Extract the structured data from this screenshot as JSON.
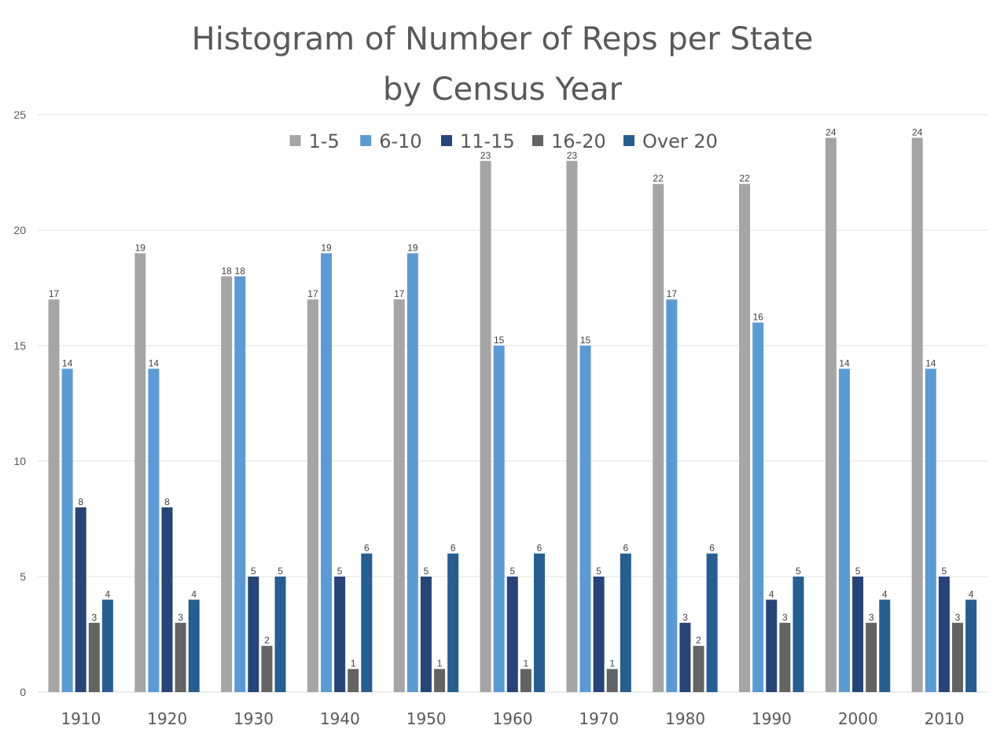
{
  "chart_data": {
    "type": "bar",
    "title": [
      "Histogram of Number of Reps per State",
      "by Census Year"
    ],
    "categories": [
      "1910",
      "1920",
      "1930",
      "1940",
      "1950",
      "1960",
      "1970",
      "1980",
      "1990",
      "2000",
      "2010"
    ],
    "series": [
      {
        "name": "1-5",
        "color": "#a5a5a5",
        "values": [
          17,
          19,
          18,
          17,
          17,
          23,
          23,
          22,
          22,
          24,
          24
        ]
      },
      {
        "name": "6-10",
        "color": "#5b9bd5",
        "values": [
          14,
          14,
          18,
          19,
          19,
          15,
          15,
          17,
          16,
          14,
          14
        ]
      },
      {
        "name": "11-15",
        "color": "#264478",
        "values": [
          8,
          8,
          5,
          5,
          5,
          5,
          5,
          3,
          4,
          5,
          5
        ]
      },
      {
        "name": "16-20",
        "color": "#636363",
        "values": [
          3,
          3,
          2,
          1,
          1,
          1,
          1,
          2,
          3,
          3,
          3
        ]
      },
      {
        "name": "Over 20",
        "color": "#255e91",
        "values": [
          4,
          4,
          5,
          6,
          6,
          6,
          6,
          6,
          5,
          4,
          4
        ]
      }
    ],
    "ylim": [
      0,
      25
    ],
    "yticks": [
      "0",
      "5",
      "10",
      "15",
      "20",
      "25"
    ],
    "xlabel": "",
    "ylabel": "",
    "grid": true,
    "legend": "top-center",
    "data_labels": true
  }
}
